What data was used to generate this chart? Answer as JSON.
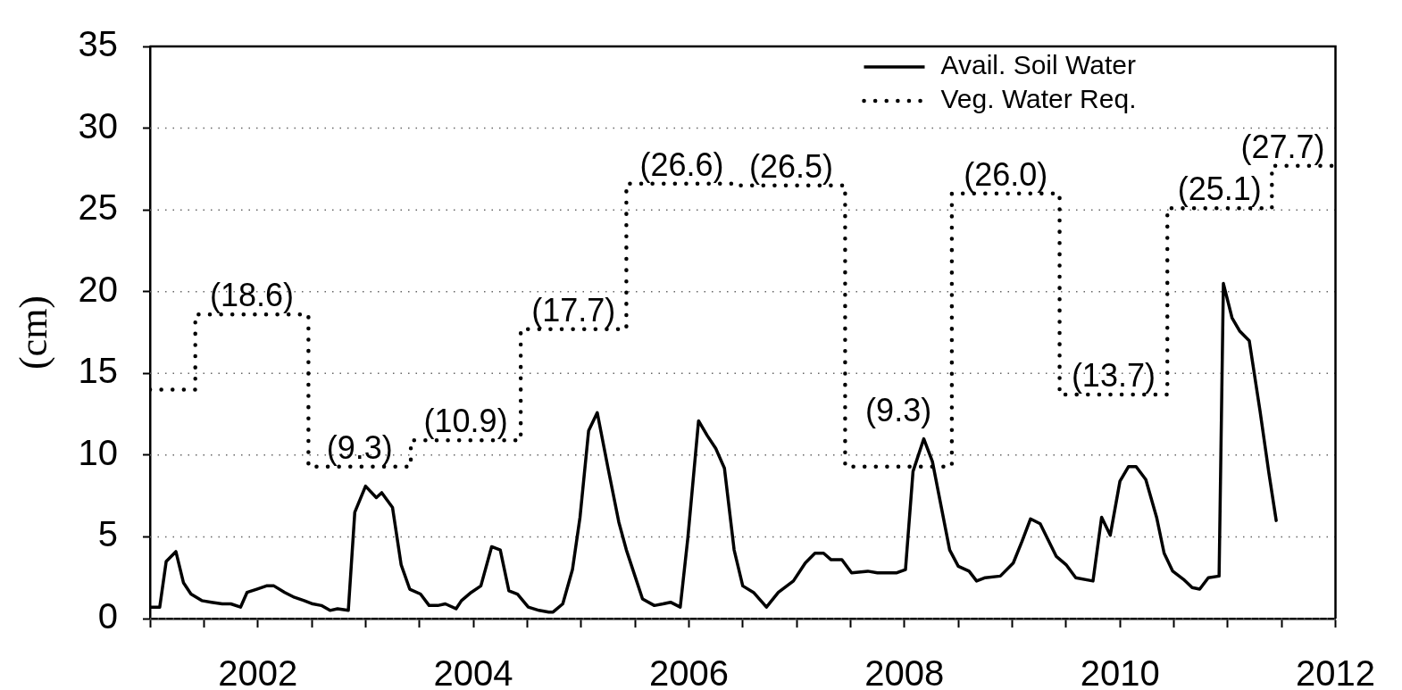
{
  "chart_data": {
    "type": "line",
    "ylabel": "(cm)",
    "xlim": [
      2001,
      2012
    ],
    "xticks": [
      {
        "value": 2001,
        "label": null
      },
      {
        "value": 2001.5,
        "label": null
      },
      2002,
      {
        "value": 2002.5,
        "label": null
      },
      {
        "value": 2003,
        "label": null
      },
      {
        "value": 2003.5,
        "label": null
      },
      2004,
      {
        "value": 2004.5,
        "label": null
      },
      {
        "value": 2005,
        "label": null
      },
      {
        "value": 2005.5,
        "label": null
      },
      2006,
      {
        "value": 2006.5,
        "label": null
      },
      {
        "value": 2007,
        "label": null
      },
      {
        "value": 2007.5,
        "label": null
      },
      2008,
      {
        "value": 2008.5,
        "label": null
      },
      {
        "value": 2009,
        "label": null
      },
      {
        "value": 2009.5,
        "label": null
      },
      2010,
      {
        "value": 2010.5,
        "label": null
      },
      {
        "value": 2011,
        "label": null
      },
      {
        "value": 2011.5,
        "label": null
      },
      2012
    ],
    "ylim": [
      0,
      35
    ],
    "yticks": [
      0,
      5,
      10,
      15,
      20,
      25,
      30,
      35
    ],
    "grid": "y",
    "legend": "top right",
    "series": [
      {
        "name": "Avail. Soil Water",
        "color": "#000000",
        "line_style": "solid",
        "x": [
          2001.0,
          2001.09,
          2001.15,
          2001.24,
          2001.31,
          2001.38,
          2001.48,
          2001.57,
          2001.67,
          2001.75,
          2001.84,
          2001.9,
          2001.99,
          2002.08,
          2002.15,
          2002.25,
          2002.34,
          2002.43,
          2002.51,
          2002.59,
          2002.67,
          2002.74,
          2002.84,
          2002.9,
          2003.0,
          2003.1,
          2003.15,
          2003.25,
          2003.33,
          2003.41,
          2003.51,
          2003.59,
          2003.67,
          2003.74,
          2003.84,
          2003.89,
          2003.98,
          2004.07,
          2004.17,
          2004.25,
          2004.33,
          2004.41,
          2004.51,
          2004.61,
          2004.7,
          2004.74,
          2004.83,
          2004.92,
          2004.99,
          2005.07,
          2005.15,
          2005.25,
          2005.35,
          2005.42,
          2005.5,
          2005.57,
          2005.68,
          2005.76,
          2005.83,
          2005.92,
          2005.99,
          2006.09,
          2006.17,
          2006.25,
          2006.33,
          2006.42,
          2006.5,
          2006.6,
          2006.72,
          2006.83,
          2006.97,
          2007.08,
          2007.17,
          2007.25,
          2007.32,
          2007.42,
          2007.51,
          2007.66,
          2007.75,
          2007.93,
          2008.01,
          2008.08,
          2008.18,
          2008.26,
          2008.42,
          2008.5,
          2008.6,
          2008.67,
          2008.75,
          2008.89,
          2009.01,
          2009.09,
          2009.17,
          2009.26,
          2009.41,
          2009.5,
          2009.59,
          2009.75,
          2009.83,
          2009.91,
          2010.0,
          2010.08,
          2010.15,
          2010.24,
          2010.34,
          2010.41,
          2010.49,
          2010.59,
          2010.67,
          2010.74,
          2010.82,
          2010.92,
          2010.96,
          2011.04,
          2011.11,
          2011.2,
          2011.3,
          2011.38,
          2011.45
        ],
        "values": [
          0.7,
          0.7,
          3.5,
          4.1,
          2.2,
          1.5,
          1.1,
          1.0,
          0.9,
          0.9,
          0.7,
          1.6,
          1.8,
          2.0,
          2.0,
          1.6,
          1.3,
          1.1,
          0.9,
          0.8,
          0.5,
          0.6,
          0.5,
          6.5,
          8.1,
          7.4,
          7.7,
          6.8,
          3.3,
          1.8,
          1.5,
          0.8,
          0.8,
          0.9,
          0.6,
          1.1,
          1.6,
          2.0,
          4.4,
          4.2,
          1.7,
          1.5,
          0.7,
          0.5,
          0.4,
          0.4,
          0.9,
          3.0,
          6.2,
          11.5,
          12.6,
          9.2,
          5.9,
          4.2,
          2.6,
          1.2,
          0.8,
          0.9,
          1.0,
          0.7,
          4.9,
          12.1,
          11.2,
          10.4,
          9.2,
          4.2,
          2.0,
          1.6,
          0.7,
          1.6,
          2.3,
          3.4,
          4.0,
          4.0,
          3.6,
          3.6,
          2.8,
          2.9,
          2.8,
          2.8,
          3.0,
          9.0,
          11.0,
          9.6,
          4.2,
          3.2,
          2.9,
          2.3,
          2.5,
          2.6,
          3.4,
          4.7,
          6.1,
          5.8,
          3.8,
          3.3,
          2.5,
          2.3,
          6.2,
          5.1,
          8.4,
          9.3,
          9.3,
          8.5,
          6.2,
          4.0,
          2.9,
          2.4,
          1.9,
          1.8,
          2.5,
          2.6,
          20.5,
          18.4,
          17.6,
          17.0,
          12.7,
          9.0,
          6.0
        ]
      },
      {
        "name": "Veg. Water Req.",
        "type": "step",
        "color": "#000000",
        "line_style": "dotted",
        "x": [
          2001,
          2001.42,
          2002.47,
          2003.42,
          2004.44,
          2005.42,
          2006.45,
          2007.45,
          2008.44,
          2009.44,
          2010.44,
          2011.41,
          2012
        ],
        "values": [
          14.0,
          18.6,
          9.3,
          10.9,
          17.7,
          26.6,
          26.5,
          9.3,
          26.0,
          13.7,
          25.1,
          27.7,
          27.7
        ],
        "value_labels": [
          null,
          "(18.6)",
          "(9.3)",
          "(10.9)",
          "(17.7)",
          "(26.6)",
          "(26.5)",
          "(9.3)",
          "(26.0)",
          "(13.7)",
          "(25.1)",
          "(27.7)",
          null
        ]
      }
    ]
  }
}
